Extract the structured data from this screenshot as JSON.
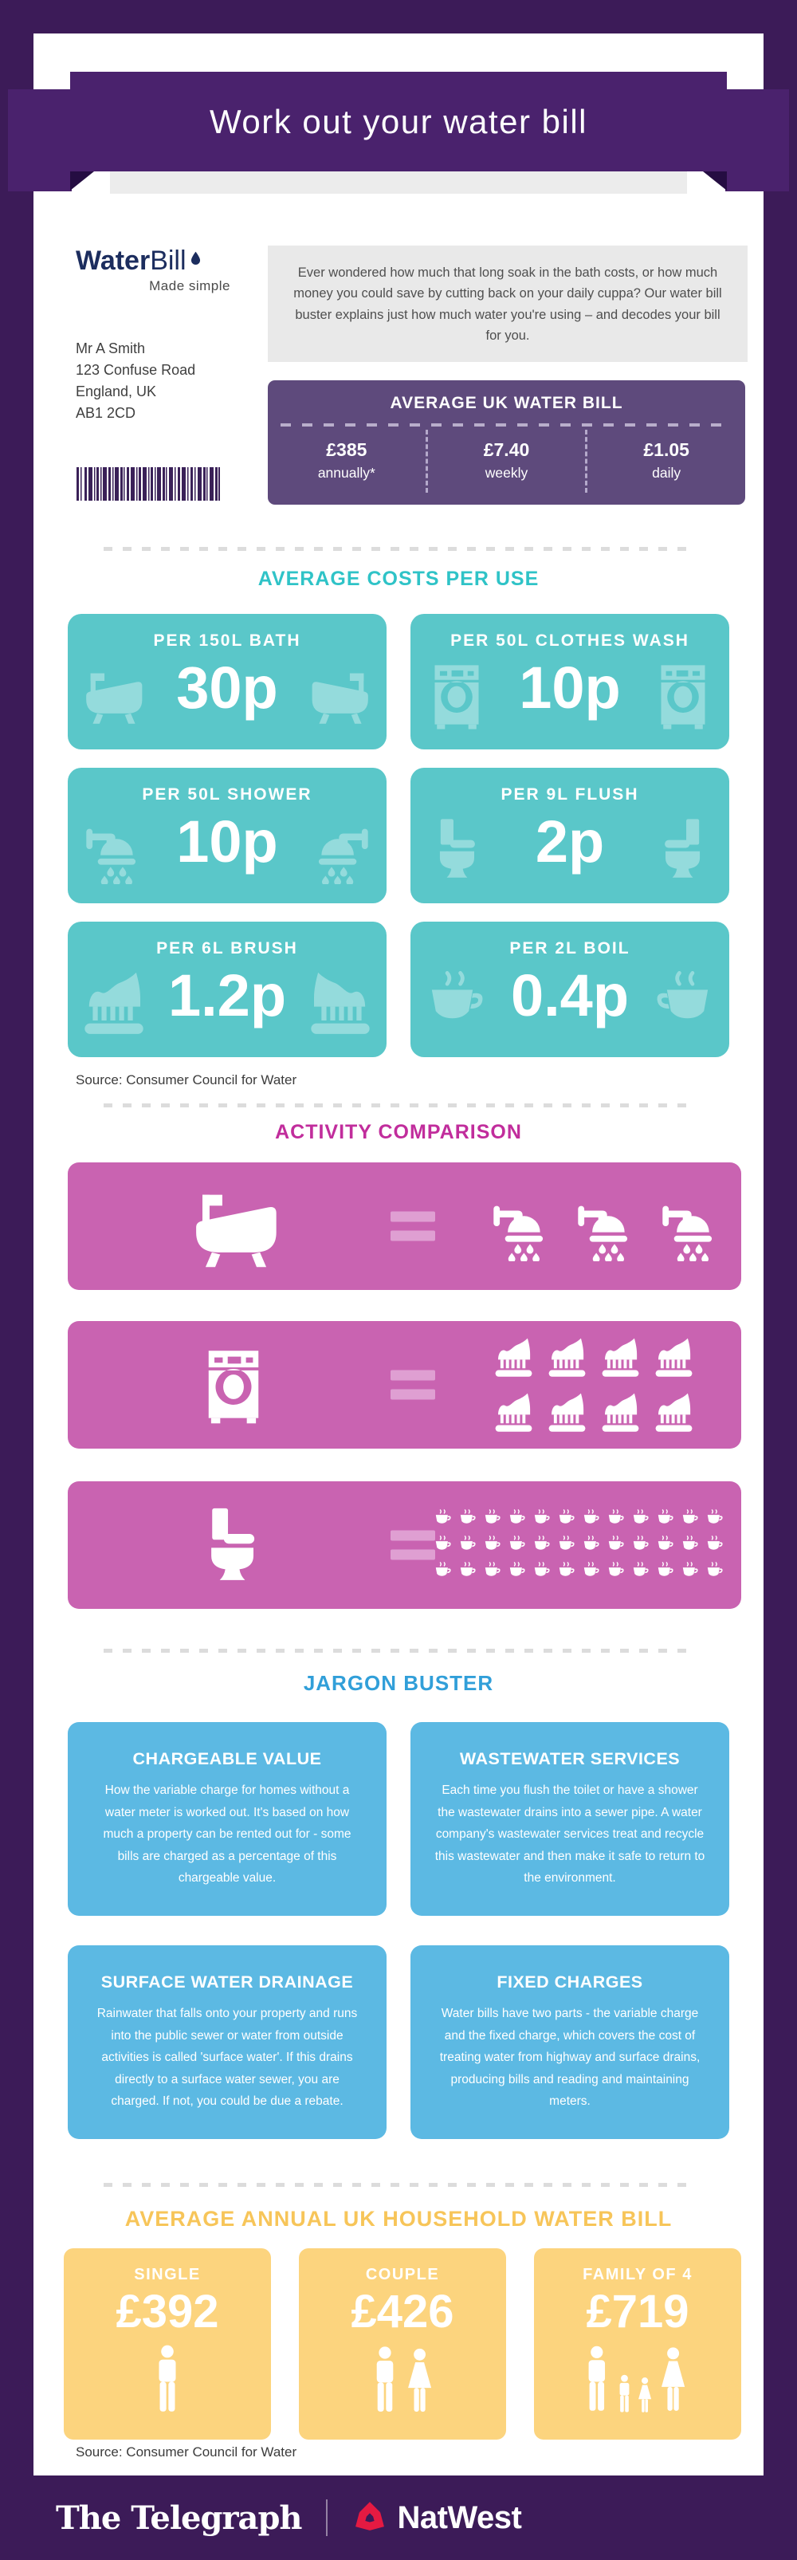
{
  "banner": {
    "title": "Work out your water bill"
  },
  "letterhead": {
    "logo": {
      "brand_water": "Water",
      "brand_bill": "Bill",
      "tagline": "Made simple"
    },
    "intro": "Ever wondered how much that long soak in the bath costs, or how much money you could save by cutting back on your daily cuppa? Our water bill buster explains just how much water you're using – and decodes your bill for you.",
    "address_lines": [
      "Mr A Smith",
      "123 Confuse Road",
      "England, UK",
      "AB1 2CD"
    ],
    "average_bill": {
      "title": "AVERAGE UK WATER BILL",
      "items": [
        {
          "value": "£385",
          "period": "annually*"
        },
        {
          "value": "£7.40",
          "period": "weekly"
        },
        {
          "value": "£1.05",
          "period": "daily"
        }
      ]
    }
  },
  "costs_section": {
    "title": "AVERAGE COSTS PER USE",
    "source": "Source: Consumer Council for Water",
    "cards": [
      {
        "label": "PER 150L BATH",
        "value": "30p",
        "icon": "bath-icon"
      },
      {
        "label": "PER 50L CLOTHES WASH",
        "value": "10p",
        "icon": "washing-machine-icon"
      },
      {
        "label": "PER 50L SHOWER",
        "value": "10p",
        "icon": "shower-icon"
      },
      {
        "label": "PER 9L FLUSH",
        "value": "2p",
        "icon": "toilet-icon"
      },
      {
        "label": "PER 6L BRUSH",
        "value": "1.2p",
        "icon": "toothbrush-icon"
      },
      {
        "label": "PER 2L BOIL",
        "value": "0.4p",
        "icon": "cup-icon"
      }
    ]
  },
  "comparison_section": {
    "title": "ACTIVITY COMPARISON",
    "rows": [
      {
        "left": "bath",
        "left_icon": "bath-icon",
        "right": "showers",
        "right_icon": "shower-icon",
        "right_count": 3
      },
      {
        "left": "clothes wash",
        "left_icon": "washing-machine-icon",
        "right": "toothbrushes",
        "right_icon": "toothbrush-icon",
        "right_count": 8
      },
      {
        "left": "toilet flush",
        "left_icon": "toilet-icon",
        "right": "cups",
        "right_icon": "cup-icon",
        "right_count": 36
      }
    ]
  },
  "jargon_section": {
    "title": "JARGON BUSTER",
    "cards": [
      {
        "title": "CHARGEABLE VALUE",
        "body": "How the variable charge for homes without a water meter is worked out. It's based on how much a property can be rented out for - some bills are charged as a percentage of this chargeable value."
      },
      {
        "title": "WASTEWATER SERVICES",
        "body": "Each time you flush the toilet or have a shower the wastewater drains into a sewer pipe. A water company's wastewater services treat and recycle this wastewater and then make it safe to return to the environment."
      },
      {
        "title": "SURFACE WATER DRAINAGE",
        "body": "Rainwater that falls onto your property and runs into the public sewer or water from outside activities is called 'surface water'. If this drains directly to a surface water sewer, you are charged. If not, you could be due a rebate."
      },
      {
        "title": "FIXED CHARGES",
        "body": "Water bills have two parts - the variable charge and the fixed charge, which covers the cost of treating water from highway and surface drains, producing bills and reading and maintaining meters."
      }
    ]
  },
  "household_section": {
    "title": "AVERAGE ANNUAL UK HOUSEHOLD WATER BILL",
    "source": "Source: Consumer Council for Water",
    "cards": [
      {
        "label": "SINGLE",
        "value": "£392",
        "icon": "single-person-icon"
      },
      {
        "label": "COUPLE",
        "value": "£426",
        "icon": "couple-icon"
      },
      {
        "label": "FAMILY OF 4",
        "value": "£719",
        "icon": "family-icon"
      }
    ]
  },
  "footer": {
    "publisher": "The Telegraph",
    "sponsor": "NatWest"
  },
  "colors": {
    "background_purple": "#3c1b58",
    "ribbon_purple": "#4a226d",
    "ribbon_fold": "#250d42",
    "bill_box_purple": "#5e4a7c",
    "brand_navy": "#1c2d5e",
    "teal_card": "#5ac7c9",
    "teal_icon": "#94dbdc",
    "teal_heading": "#2fc3c7",
    "pink_card": "#c963b1",
    "pink_equals": "#df9fd2",
    "pink_heading": "#c12d9c",
    "blue_card": "#5cb9e3",
    "blue_heading": "#319fd9",
    "yellow_card": "#fcd47e",
    "gold_heading": "#f7c559",
    "natwest_red": "#e51a42"
  }
}
